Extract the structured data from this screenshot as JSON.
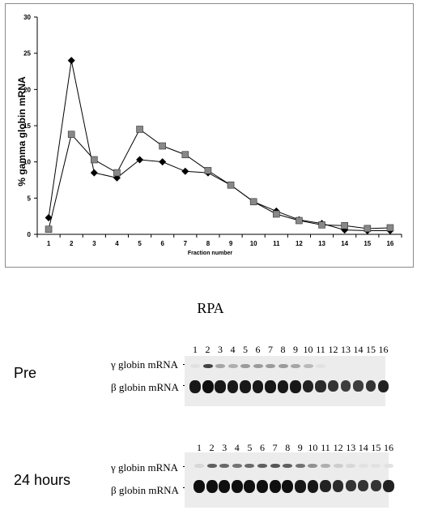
{
  "chart_data": {
    "type": "line",
    "xlabel": "Fraction number",
    "ylabel": "% gamma globin mRNA",
    "x": [
      1,
      2,
      3,
      4,
      5,
      6,
      7,
      8,
      9,
      10,
      11,
      12,
      13,
      14,
      15,
      16
    ],
    "xlim": [
      0.5,
      16.5
    ],
    "ylim": [
      0,
      30
    ],
    "yticks": [
      0,
      5,
      10,
      15,
      20,
      25,
      30
    ],
    "grid": false,
    "series": [
      {
        "marker": "diamond",
        "color": "#000000",
        "values": [
          2.3,
          24.0,
          8.5,
          7.8,
          10.3,
          10.0,
          8.7,
          8.5,
          6.8,
          4.5,
          3.2,
          2.0,
          1.5,
          0.6,
          0.5,
          0.5
        ]
      },
      {
        "marker": "square",
        "color": "#888888",
        "values": [
          0.7,
          13.8,
          10.3,
          8.5,
          14.5,
          12.2,
          11.0,
          8.8,
          6.8,
          4.5,
          2.8,
          1.9,
          1.3,
          1.2,
          0.8,
          0.9
        ]
      }
    ]
  },
  "rpa": {
    "title": "RPA",
    "lanes": [
      "1",
      "2",
      "3",
      "4",
      "5",
      "6",
      "7",
      "8",
      "9",
      "10",
      "11",
      "12",
      "13",
      "14",
      "15",
      "16"
    ],
    "panels": [
      {
        "condition": "Pre",
        "gamma_label": "γ globin mRNA",
        "beta_label": "β globin mRNA",
        "gamma_intensity": [
          0.05,
          0.85,
          0.35,
          0.3,
          0.4,
          0.4,
          0.4,
          0.4,
          0.35,
          0.25,
          0.05,
          0.0,
          0.0,
          0.0,
          0.0,
          0.0
        ],
        "beta_intensity": [
          0.95,
          1.0,
          0.95,
          0.95,
          0.95,
          0.95,
          0.95,
          0.95,
          0.95,
          0.9,
          0.85,
          0.8,
          0.75,
          0.75,
          0.8,
          0.9
        ]
      },
      {
        "condition": "24 hours",
        "gamma_label": "γ globin mRNA",
        "beta_label": "β globin mRNA",
        "gamma_intensity": [
          0.1,
          0.7,
          0.65,
          0.6,
          0.65,
          0.7,
          0.75,
          0.7,
          0.6,
          0.45,
          0.3,
          0.15,
          0.1,
          0.05,
          0.05,
          0.05
        ],
        "beta_intensity": [
          1.0,
          1.0,
          1.0,
          1.0,
          1.0,
          1.0,
          1.0,
          1.0,
          0.95,
          0.95,
          0.9,
          0.85,
          0.8,
          0.8,
          0.8,
          0.9
        ]
      }
    ]
  }
}
